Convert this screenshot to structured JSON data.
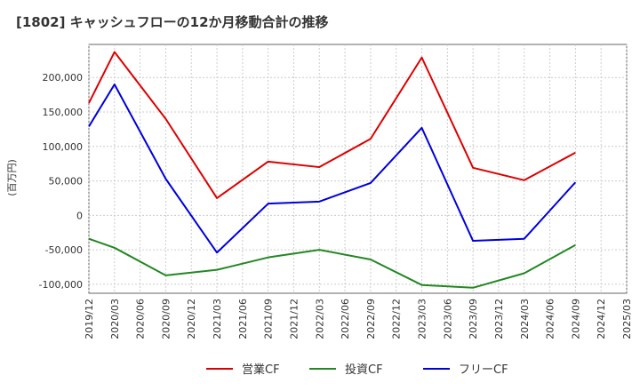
{
  "chart_data": {
    "type": "line",
    "title": "[1802]  キャッシュフローの12か月移動合計の推移",
    "ylabel": "(百万円)",
    "xlabel": "",
    "ylim": [
      -113000,
      248000
    ],
    "yticks": [
      200000,
      150000,
      100000,
      50000,
      0,
      -50000,
      -100000
    ],
    "ytick_labels": [
      "200,000",
      "150,000",
      "100,000",
      "50,000",
      "0",
      "-50,000",
      "-100,000"
    ],
    "xticks": [
      "2019/12",
      "2020/03",
      "2020/06",
      "2020/09",
      "2020/12",
      "2021/03",
      "2021/06",
      "2021/09",
      "2021/12",
      "2022/03",
      "2022/06",
      "2022/09",
      "2022/12",
      "2023/03",
      "2023/06",
      "2023/09",
      "2023/12",
      "2024/03",
      "2024/06",
      "2024/09",
      "2024/12",
      "2025/03"
    ],
    "x": [
      "2019/12",
      "2020/03",
      "2020/09",
      "2021/03",
      "2021/09",
      "2022/03",
      "2022/09",
      "2023/03",
      "2023/09",
      "2024/03",
      "2024/09"
    ],
    "series": [
      {
        "name": "営業CF",
        "color": "#dd0000",
        "values": [
          163000,
          237000,
          140000,
          25000,
          78000,
          70000,
          111000,
          229000,
          69000,
          51000,
          91000
        ]
      },
      {
        "name": "投資CF",
        "color": "#228822",
        "values": [
          -34000,
          -47000,
          -87000,
          -79000,
          -61000,
          -50000,
          -64000,
          -101000,
          -105000,
          -84000,
          -43000
        ]
      },
      {
        "name": "フリーCF",
        "color": "#0000dd",
        "values": [
          129000,
          190000,
          53000,
          -54000,
          17000,
          20000,
          47000,
          127000,
          -37000,
          -34000,
          48000
        ]
      }
    ],
    "grid": true,
    "legend": "bottom-center"
  }
}
